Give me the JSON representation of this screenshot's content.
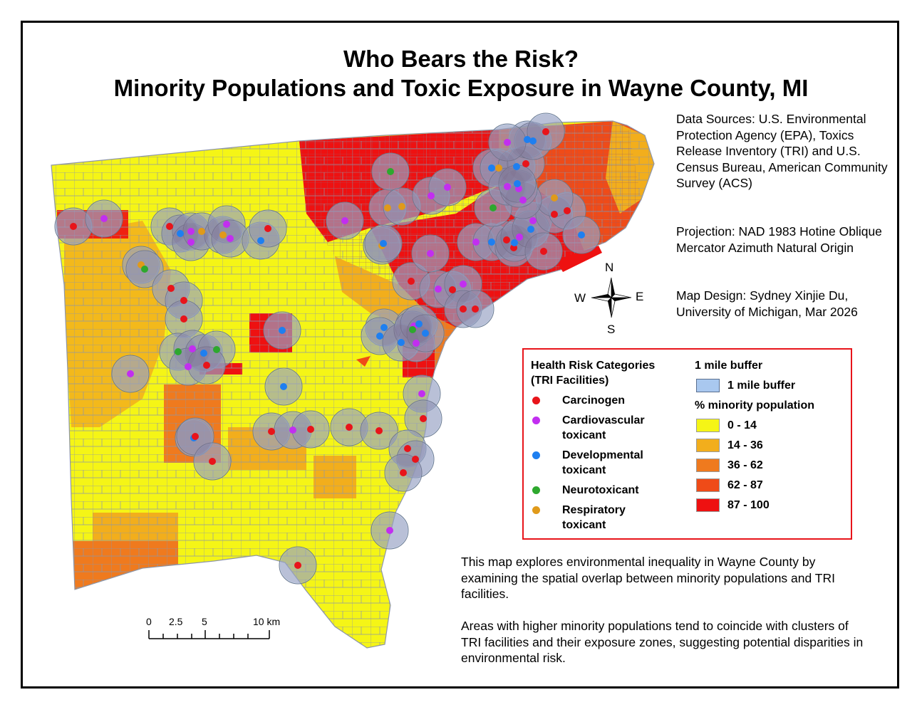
{
  "title": {
    "line1": "Who Bears the Risk?",
    "line2": "Minority Populations and Toxic Exposure in Wayne County, MI"
  },
  "sources": "Data Sources: U.S. Environmental Protection Agency (EPA), Toxics Release Inventory (TRI) and U.S. Census Bureau, American Community Survey (ACS)",
  "projection": "Projection: NAD 1983 Hotine Oblique Mercator Azimuth Natural Origin",
  "design": "Map Design: Sydney Xinjie Du, University of Michigan, Mar 2026",
  "compass": {
    "n": "N",
    "s": "S",
    "e": "E",
    "w": "W"
  },
  "legend": {
    "health_title_1": "Health Risk Categories",
    "health_title_2": "(TRI Facilities)",
    "categories": [
      {
        "label1": "Carcinogen",
        "label2": "",
        "color": "#e8141a"
      },
      {
        "label1": "Cardiovascular",
        "label2": "toxicant",
        "color": "#c22ef0"
      },
      {
        "label1": "Developmental",
        "label2": "toxicant",
        "color": "#1e7ff0"
      },
      {
        "label1": "Neurotoxicant",
        "label2": "",
        "color": "#2ea82e"
      },
      {
        "label1": "Respiratory",
        "label2": "toxicant",
        "color": "#e09a1a"
      }
    ],
    "buffer_title": "1 mile buffer",
    "buffer_label": "1 mile buffer",
    "buffer_color": "#a9c8ef",
    "minority_title": "% minority population",
    "classes": [
      {
        "label": "0 - 14",
        "color": "#f5f516"
      },
      {
        "label": "14 - 36",
        "color": "#f2ae1c"
      },
      {
        "label": "36 - 62",
        "color": "#ef7a1e"
      },
      {
        "label": "62 - 87",
        "color": "#ef4b18"
      },
      {
        "label": "87 - 100",
        "color": "#ee1111"
      }
    ]
  },
  "description": {
    "p1": "This map explores environmental inequality in Wayne County by examining the spatial overlap between minority populations and TRI facilities.",
    "p2": "Areas with higher minority populations tend to coincide with clusters of TRI facilities and their exposure zones, suggesting potential disparities in environmental risk."
  },
  "scale_bar": {
    "labels": [
      "0",
      "2.5",
      "5",
      "10 km"
    ]
  }
}
